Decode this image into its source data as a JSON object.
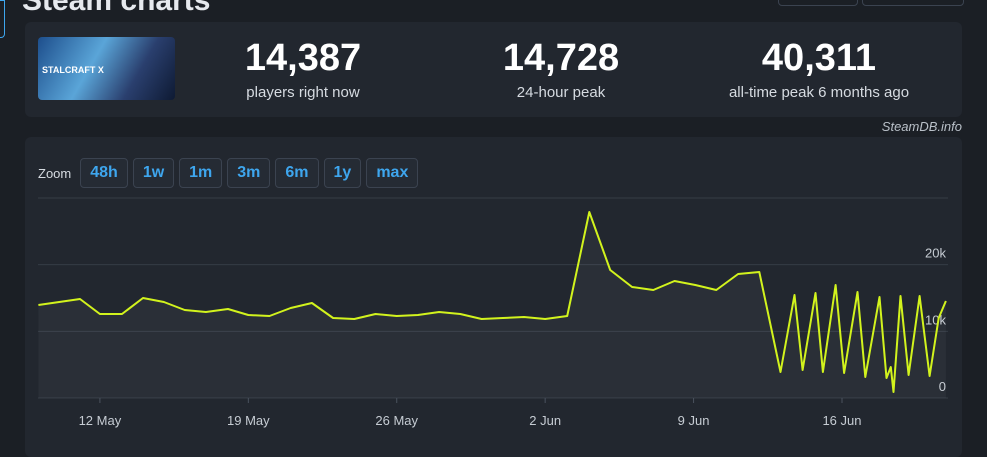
{
  "header": {
    "title": "Steam charts"
  },
  "stats": [
    {
      "value": "14,387",
      "label": "players right now"
    },
    {
      "value": "14,728",
      "label": "24-hour peak"
    },
    {
      "value": "40,311",
      "label": "all-time peak 6 months ago"
    }
  ],
  "watermark": "SteamDB.info",
  "zoom": {
    "label": "Zoom",
    "options": [
      "48h",
      "1w",
      "1m",
      "3m",
      "6m",
      "1y",
      "max"
    ]
  },
  "chart_data": {
    "type": "line",
    "x": [
      9.1,
      11.06,
      12,
      13.04,
      14.03,
      15.02,
      16,
      17,
      18.04,
      19,
      20,
      21,
      22,
      23,
      24,
      25,
      26,
      27,
      28,
      29,
      30,
      31,
      32,
      33,
      34.04,
      35.08,
      36.07,
      37.1,
      38.1,
      39.1,
      40.08,
      41.07,
      42.1,
      43.1,
      44.1,
      44.76,
      45.14,
      45.75,
      46.1,
      46.7,
      47.1,
      47.73,
      48.1,
      48.77,
      49.1,
      49.3,
      49.43,
      49.76,
      50.14,
      50.66,
      51.13,
      51.56,
      51.9
    ],
    "series": [
      {
        "color": "#d2f31d",
        "values": [
          13950,
          14850,
          12600,
          12600,
          15000,
          14400,
          13200,
          12900,
          13350,
          12450,
          12300,
          13500,
          14250,
          12000,
          11850,
          12600,
          12300,
          12450,
          12900,
          12600,
          11850,
          12000,
          12150,
          11850,
          12300,
          27900,
          19200,
          16650,
          16200,
          17550,
          16950,
          16200,
          18600,
          18900,
          3900,
          15450,
          4200,
          15750,
          3900,
          16950,
          3750,
          15900,
          3150,
          15150,
          3000,
          4650,
          900,
          15300,
          3450,
          15300,
          3300,
          12000,
          14550
        ]
      }
    ],
    "xlim": [
      9.08,
      52
    ],
    "ylim": [
      0,
      30000
    ],
    "xticks": [
      {
        "value": 12,
        "label": "12 May"
      },
      {
        "value": 19,
        "label": "19 May"
      },
      {
        "value": 26,
        "label": "26 May"
      },
      {
        "value": 33,
        "label": "2 Jun"
      },
      {
        "value": 40,
        "label": "9 Jun"
      },
      {
        "value": 47,
        "label": "16 Jun"
      }
    ],
    "yticks": [
      0,
      {
        "value": 10000,
        "label": "10k"
      },
      {
        "value": 20000,
        "label": "20k"
      }
    ],
    "grid": true
  }
}
